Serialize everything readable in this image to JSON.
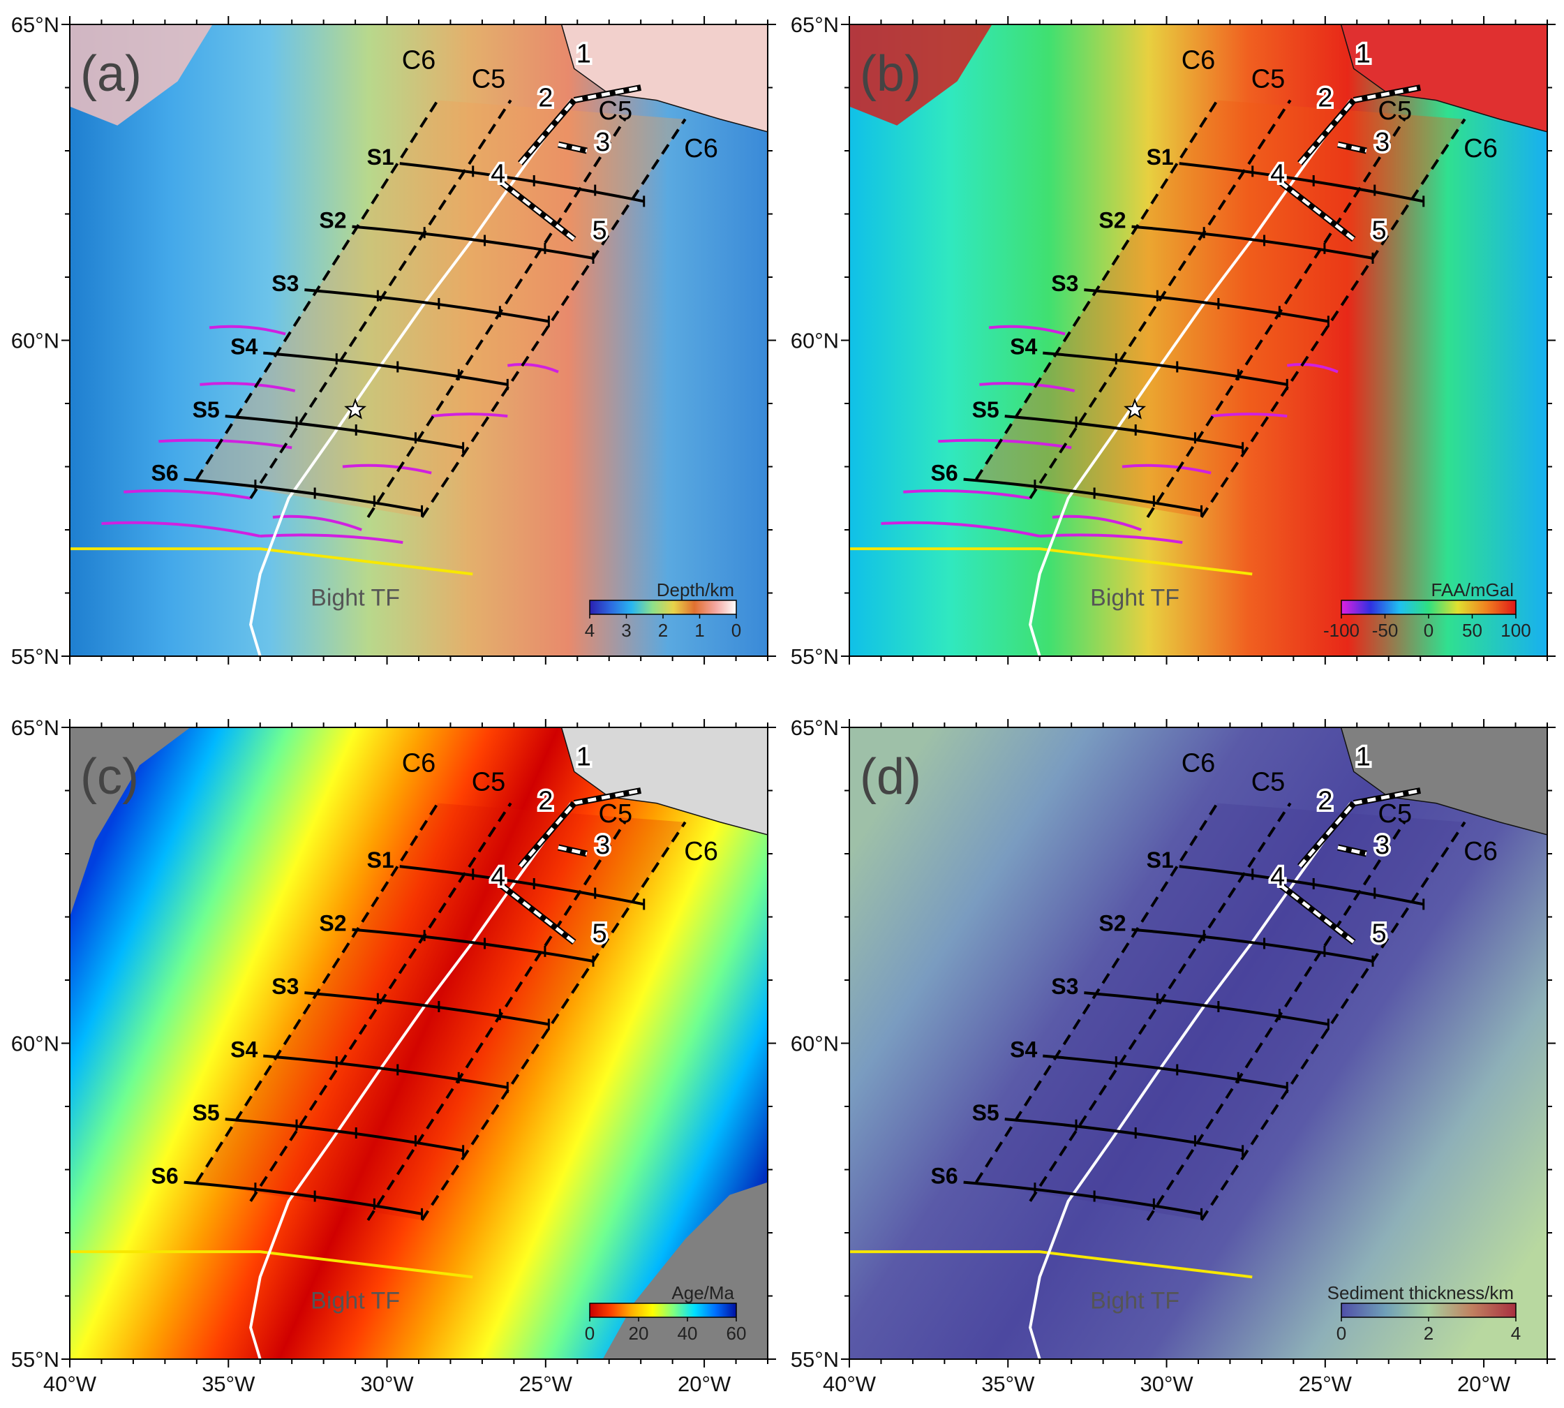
{
  "panels": [
    {
      "id": "a",
      "letter": "(a)",
      "colorbar": {
        "title": "Depth/km",
        "ticks": [
          "4",
          "3",
          "2",
          "1",
          "0"
        ],
        "stops": [
          "#2a1fb0",
          "#2d6ae0",
          "#29b6f0",
          "#8de08a",
          "#e8d44a",
          "#e07030",
          "#f4a6a0",
          "#ffffff"
        ]
      },
      "star": true,
      "magenta": true
    },
    {
      "id": "b",
      "letter": "(b)",
      "colorbar": {
        "title": "FAA/mGal",
        "ticks": [
          "-100",
          "-50",
          "0",
          "50",
          "100"
        ],
        "stops": [
          "#e020e0",
          "#3030e0",
          "#20c0f0",
          "#30e080",
          "#e0e030",
          "#f08020",
          "#e01818"
        ]
      },
      "star": true,
      "magenta": true
    },
    {
      "id": "c",
      "letter": "(c)",
      "colorbar": {
        "title": "Age/Ma",
        "ticks": [
          "0",
          "20",
          "40",
          "60"
        ],
        "stops": [
          "#c80000",
          "#ff4000",
          "#ffb000",
          "#ffff00",
          "#80ff80",
          "#00e0ff",
          "#0070ff",
          "#0010a0"
        ]
      },
      "star": false,
      "magenta": false
    },
    {
      "id": "d",
      "letter": "(d)",
      "colorbar": {
        "title": "Sediment thickness/km",
        "ticks": [
          "0",
          "2",
          "4"
        ],
        "stops": [
          "#5050a8",
          "#6f9fb8",
          "#a8d0a0",
          "#c08060",
          "#a83040"
        ]
      },
      "star": false,
      "magenta": false
    }
  ],
  "lat_labels": [
    "65°N",
    "60°N",
    "55°N"
  ],
  "lon_labels": [
    "40°W",
    "35°W",
    "30°W",
    "25°W",
    "20°W"
  ],
  "lat_values": [
    65,
    60,
    55
  ],
  "lon_values": [
    -40,
    -35,
    -30,
    -25,
    -20
  ],
  "extent": {
    "lon": [
      -40,
      -18
    ],
    "lat": [
      55,
      65
    ]
  },
  "profiles": [
    {
      "label": "S1",
      "start": [
        -29.6,
        62.8
      ],
      "end": [
        -21.9,
        62.2
      ]
    },
    {
      "label": "S2",
      "start": [
        -31.1,
        61.8
      ],
      "end": [
        -23.5,
        61.3
      ]
    },
    {
      "label": "S3",
      "start": [
        -32.6,
        60.8
      ],
      "end": [
        -24.9,
        60.3
      ]
    },
    {
      "label": "S4",
      "start": [
        -33.9,
        59.8
      ],
      "end": [
        -26.2,
        59.3
      ]
    },
    {
      "label": "S5",
      "start": [
        -35.1,
        58.8
      ],
      "end": [
        -27.6,
        58.3
      ]
    },
    {
      "label": "S6",
      "start": [
        -36.4,
        57.8
      ],
      "end": [
        -28.9,
        57.3
      ]
    }
  ],
  "chrons": [
    {
      "label": "C6",
      "line": [
        [
          -36.0,
          57.8
        ],
        [
          -28.4,
          63.8
        ]
      ]
    },
    {
      "label": "C5",
      "line": [
        [
          -34.3,
          57.5
        ],
        [
          -26.1,
          63.8
        ]
      ]
    },
    {
      "label": "C5",
      "line": [
        [
          -30.6,
          57.2
        ],
        [
          -22.5,
          63.5
        ]
      ]
    },
    {
      "label": "C6",
      "line": [
        [
          -28.9,
          57.2
        ],
        [
          -20.6,
          63.5
        ]
      ]
    }
  ],
  "segments": [
    {
      "label": "1",
      "line": [
        [
          -24.1,
          63.8
        ],
        [
          -22.0,
          64.0
        ]
      ]
    },
    {
      "label": "2",
      "line": [
        [
          -25.8,
          62.8
        ],
        [
          -24.1,
          63.8
        ]
      ]
    },
    {
      "label": "3",
      "line": [
        [
          -24.6,
          63.1
        ],
        [
          -23.7,
          63.0
        ]
      ]
    },
    {
      "label": "4",
      "line": [
        [
          -26.4,
          62.5
        ],
        [
          -24.1,
          61.6
        ]
      ]
    },
    {
      "label": "5",
      "line": [
        [
          -26.4,
          62.5
        ],
        [
          -24.1,
          61.6
        ]
      ]
    }
  ],
  "bight_tf": {
    "label": "Bight TF",
    "line": [
      [
        -40.0,
        56.7
      ],
      [
        -34.0,
        56.7
      ],
      [
        -27.3,
        56.3
      ]
    ]
  },
  "ridge_axis": [
    [
      -34.0,
      55.0
    ],
    [
      -34.3,
      55.5
    ],
    [
      -34.0,
      56.3
    ],
    [
      -33.7,
      56.7
    ],
    [
      -33.1,
      57.5
    ],
    [
      -31.7,
      58.5
    ],
    [
      -30.2,
      59.6
    ],
    [
      -28.8,
      60.6
    ],
    [
      -27.3,
      61.6
    ],
    [
      -25.9,
      62.6
    ],
    [
      -24.9,
      63.3
    ],
    [
      -24.2,
      63.8
    ]
  ],
  "star_location": [
    -31.0,
    58.9
  ]
}
